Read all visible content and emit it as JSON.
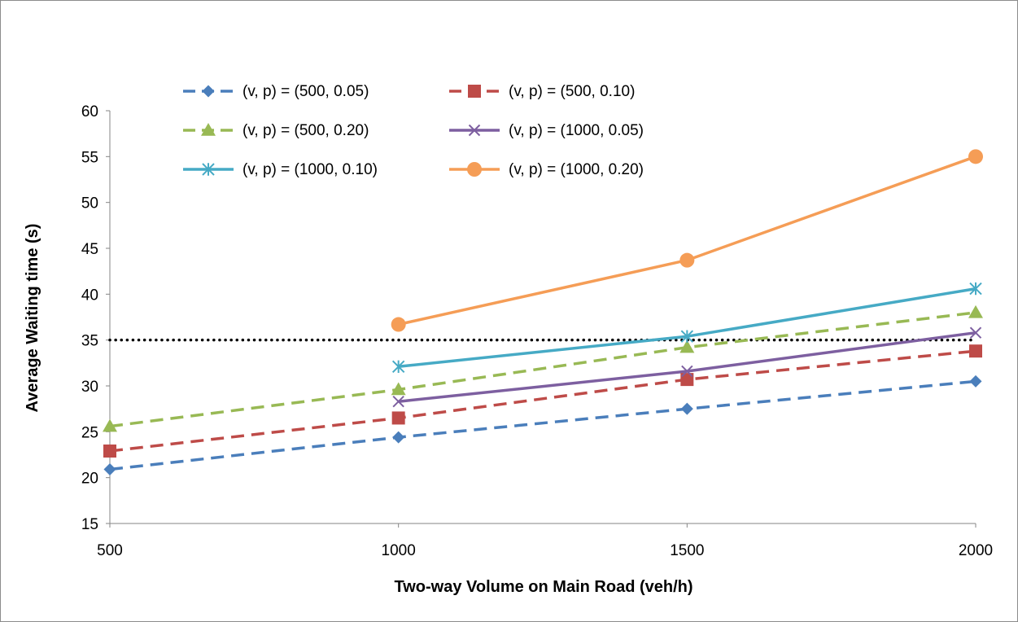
{
  "chart_data": {
    "type": "line",
    "xlabel": "Two-way Volume on Main Road (veh/h)",
    "ylabel": "Average Waiting time (s)",
    "x": [
      500,
      1000,
      1500,
      2000
    ],
    "x_tick_labels": [
      "500",
      "1000",
      "1500",
      "2000"
    ],
    "ylim": [
      15,
      60
    ],
    "y_tick_labels": [
      "15",
      "20",
      "25",
      "30",
      "35",
      "40",
      "45",
      "50",
      "55",
      "60"
    ],
    "grid": false,
    "legend_position": "top",
    "threshold_line": {
      "y": 35,
      "style": "dotted",
      "color": "#000000"
    },
    "series": [
      {
        "name": "(v, p) = (500, 0.05)",
        "values": [
          20.9,
          24.4,
          27.5,
          30.5
        ],
        "color": "#4a7ebb",
        "line": "dashed",
        "marker": "diamond"
      },
      {
        "name": "(v, p) = (500, 0.10)",
        "values": [
          22.9,
          26.5,
          30.7,
          33.8
        ],
        "color": "#be4b48",
        "line": "dashed",
        "marker": "square"
      },
      {
        "name": "(v, p) = (500, 0.20)",
        "values": [
          25.6,
          29.6,
          34.2,
          38.0
        ],
        "color": "#98b954",
        "line": "dashed",
        "marker": "triangle"
      },
      {
        "name": "(v, p) = (1000, 0.05)",
        "values": [
          null,
          28.3,
          31.6,
          35.8
        ],
        "color": "#7d5fa0",
        "line": "solid",
        "marker": "x"
      },
      {
        "name": "(v, p) = (1000, 0.10)",
        "values": [
          null,
          32.1,
          35.4,
          40.6
        ],
        "color": "#46aac5",
        "line": "solid",
        "marker": "star"
      },
      {
        "name": "(v, p) = (1000, 0.20)",
        "values": [
          null,
          36.7,
          43.7,
          55.0
        ],
        "color": "#f59d56",
        "line": "solid",
        "marker": "circle"
      }
    ]
  }
}
